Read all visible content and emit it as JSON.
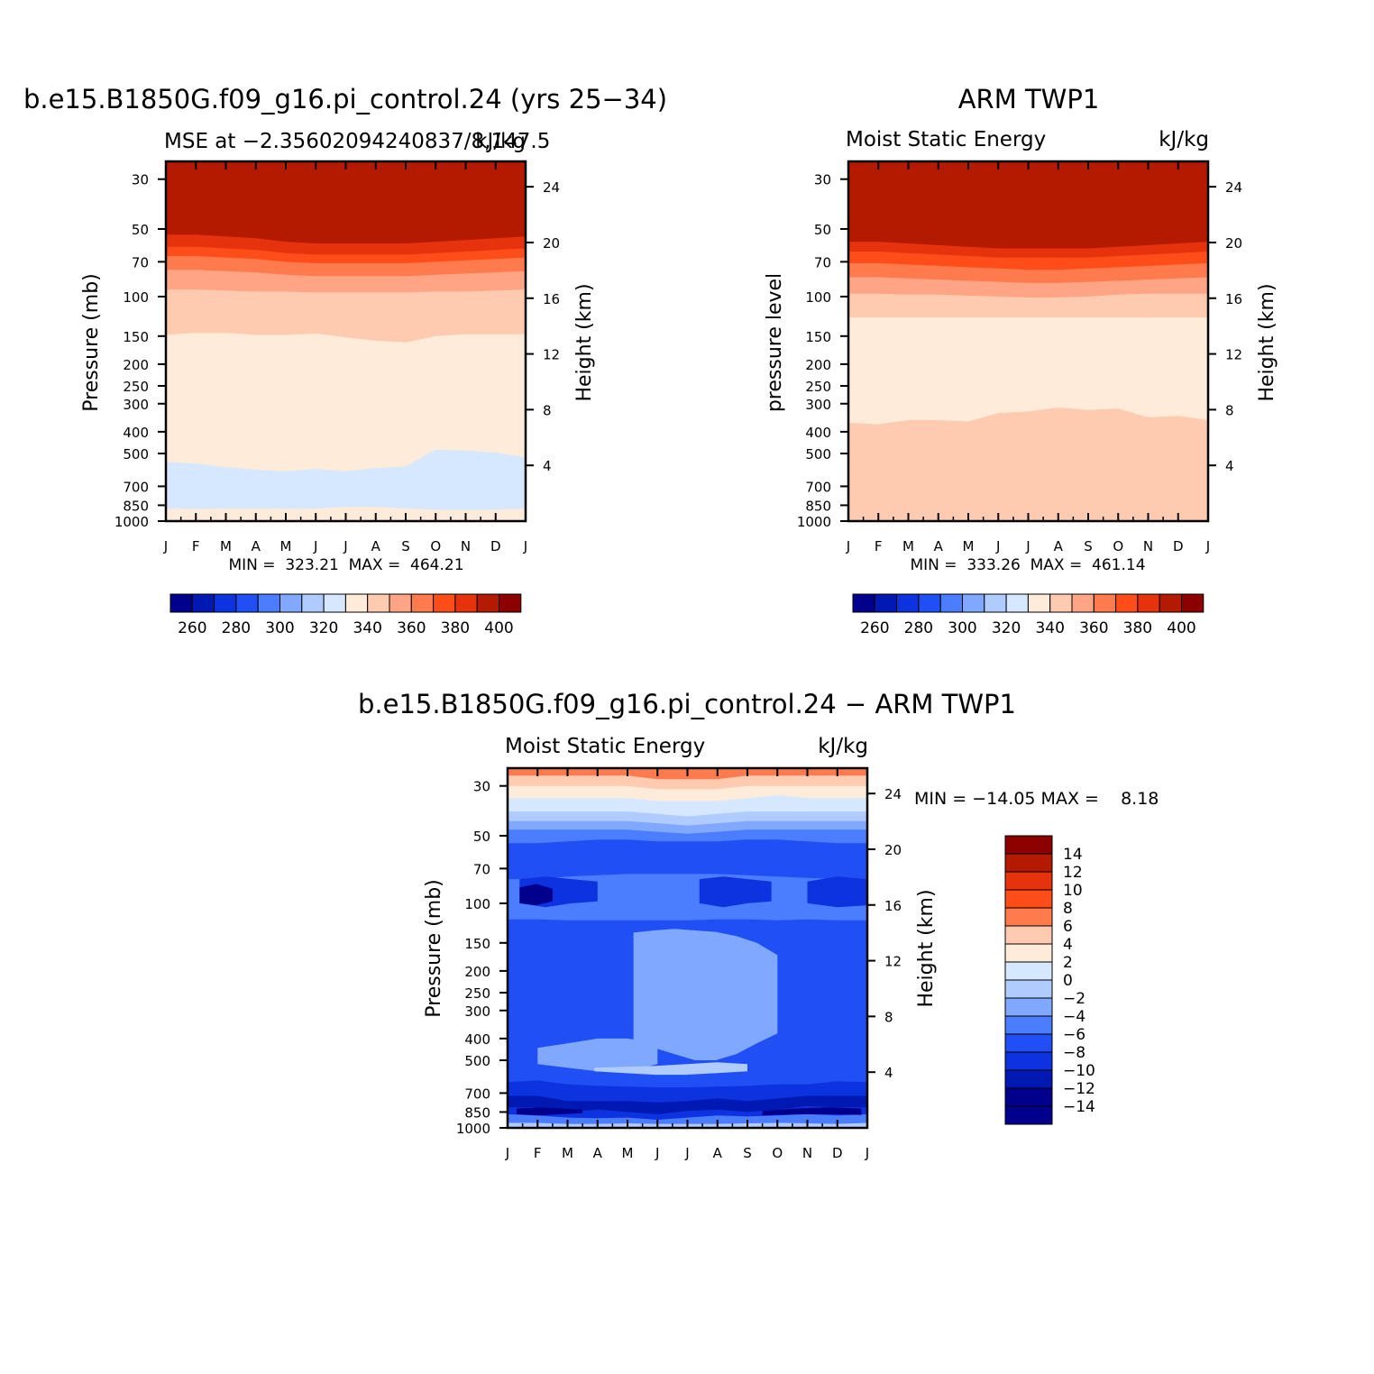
{
  "colors": {
    "abs_levels": [
      "#00008c",
      "#0019b3",
      "#0d33e0",
      "#1f4ff5",
      "#4a7dff",
      "#80a8ff",
      "#b0ccff",
      "#d6e8ff",
      "#ffebd9",
      "#ffcbb0",
      "#ffa585",
      "#ff7a4d",
      "#ff4d1a",
      "#e6330d",
      "#b31a00",
      "#8c0000"
    ],
    "diff_levels": [
      "#00008c",
      "#0019b3",
      "#0d33e0",
      "#1f4ff5",
      "#4a7dff",
      "#80a8ff",
      "#b0ccff",
      "#d6e8ff",
      "#ffebd9",
      "#ffcbb0",
      "#ff7a4d",
      "#ff4d1a",
      "#e6330d",
      "#b31a00",
      "#8c0000"
    ]
  },
  "chart_data": [
    {
      "type": "heatmap",
      "title": "b.e15.B1850G.f09_g16.pi_control.24 (yrs 25−34)",
      "subtitle_left": "MSE at −2.35602094240837/8,147.5",
      "subtitle_right": "kJ/kg",
      "ylabel": "Pressure (mb)",
      "ylabel_right": "Height (km)",
      "x_ticks": [
        "J",
        "F",
        "M",
        "A",
        "M",
        "J",
        "J",
        "A",
        "S",
        "O",
        "N",
        "D",
        "J"
      ],
      "y_ticks": [
        30,
        50,
        70,
        100,
        150,
        200,
        250,
        300,
        400,
        500,
        700,
        850,
        1000
      ],
      "y_ticks_right": [
        24,
        20,
        16,
        12,
        8,
        4
      ],
      "y_scale": "log",
      "ylim": [
        1000,
        25
      ],
      "stats_text": "MIN =  323.21  MAX =  464.21",
      "colorbar_labels": [
        "260",
        "280",
        "300",
        "320",
        "340",
        "360",
        "380",
        "400"
      ],
      "months": [
        0,
        1,
        2,
        3,
        4,
        5,
        6,
        7,
        8,
        9,
        10,
        11,
        12
      ],
      "bands": [
        {
          "level": 8,
          "upper_p": [
            940,
            940,
            940,
            940,
            940,
            940,
            930,
            930,
            940,
            950,
            950,
            950,
            950
          ]
        },
        {
          "level": 7,
          "upper_p": [
            880,
            885,
            880,
            880,
            880,
            880,
            865,
            865,
            880,
            890,
            890,
            890,
            880
          ]
        },
        {
          "level": 8,
          "upper_p": [
            545,
            555,
            575,
            590,
            600,
            585,
            600,
            580,
            570,
            480,
            485,
            495,
            520
          ]
        },
        {
          "level": 9,
          "upper_p": [
            148,
            145,
            145,
            148,
            148,
            146,
            152,
            157,
            160,
            150,
            147,
            147,
            147
          ]
        },
        {
          "level": 10,
          "upper_p": [
            93,
            93,
            94,
            95,
            95,
            96,
            96,
            96,
            96,
            95,
            95,
            94,
            93
          ]
        },
        {
          "level": 11,
          "upper_p": [
            76,
            76,
            77,
            78,
            80,
            81,
            81,
            81,
            81,
            80,
            79,
            78,
            77
          ]
        },
        {
          "level": 12,
          "upper_p": [
            66,
            66,
            67,
            68,
            70,
            71,
            71,
            71,
            71,
            70,
            69,
            68,
            67
          ]
        },
        {
          "level": 13,
          "upper_p": [
            60,
            60,
            61,
            62,
            64,
            65,
            65,
            65,
            65,
            64,
            63,
            62,
            61
          ]
        },
        {
          "level": 14,
          "upper_p": [
            53,
            53,
            54,
            55,
            57,
            58,
            58,
            58,
            58,
            57,
            56,
            55,
            54
          ]
        },
        {
          "level": 15,
          "upper_p": [
            25,
            25,
            25,
            25,
            25,
            25,
            25,
            25,
            25,
            25,
            25,
            25,
            25
          ]
        }
      ]
    },
    {
      "type": "heatmap",
      "title": "ARM TWP1",
      "subtitle_left": "Moist Static Energy",
      "subtitle_right": "kJ/kg",
      "ylabel": "pressure level",
      "ylabel_right": "Height (km)",
      "x_ticks": [
        "J",
        "F",
        "M",
        "A",
        "M",
        "J",
        "J",
        "A",
        "S",
        "O",
        "N",
        "D",
        "J"
      ],
      "y_ticks": [
        30,
        50,
        70,
        100,
        150,
        200,
        250,
        300,
        400,
        500,
        700,
        850,
        1000
      ],
      "y_ticks_right": [
        24,
        20,
        16,
        12,
        8,
        4
      ],
      "y_scale": "log",
      "ylim": [
        1000,
        25
      ],
      "stats_text": "MIN =  333.26  MAX =  461.14",
      "colorbar_labels": [
        "260",
        "280",
        "300",
        "320",
        "340",
        "360",
        "380",
        "400"
      ],
      "months": [
        0,
        1,
        2,
        3,
        4,
        5,
        6,
        7,
        8,
        9,
        10,
        11,
        12
      ],
      "bands": [
        {
          "level": 9,
          "upper_p": [
            870,
            880,
            880,
            855,
            870,
            890,
            890,
            890,
            880,
            880,
            860,
            860,
            860
          ]
        },
        {
          "level": 8,
          "upper_p": [
            365,
            370,
            355,
            355,
            360,
            330,
            325,
            312,
            320,
            315,
            345,
            340,
            355
          ]
        },
        {
          "level": 9,
          "upper_p": [
            124,
            124,
            124,
            124,
            124,
            124,
            124,
            124,
            124,
            124,
            124,
            124,
            124
          ]
        },
        {
          "level": 10,
          "upper_p": [
            97,
            97,
            98,
            98,
            99,
            100,
            101,
            101,
            100,
            98,
            97,
            97,
            97
          ]
        },
        {
          "level": 11,
          "upper_p": [
            82,
            82,
            83,
            84,
            85,
            86,
            87,
            87,
            86,
            85,
            84,
            83,
            82
          ]
        },
        {
          "level": 12,
          "upper_p": [
            71,
            71,
            72,
            73,
            74,
            75,
            76,
            76,
            75,
            74,
            73,
            72,
            71
          ]
        },
        {
          "level": 13,
          "upper_p": [
            63,
            63,
            64,
            65,
            66,
            67,
            67,
            67,
            67,
            66,
            65,
            64,
            63
          ]
        },
        {
          "level": 14,
          "upper_p": [
            57,
            57,
            58,
            59,
            60,
            61,
            61,
            61,
            61,
            60,
            59,
            58,
            57
          ]
        },
        {
          "level": 15,
          "upper_p": [
            25,
            25,
            25,
            25,
            25,
            25,
            25,
            25,
            25,
            25,
            25,
            25,
            25
          ]
        }
      ]
    },
    {
      "type": "heatmap",
      "title": "b.e15.B1850G.f09_g16.pi_control.24 − ARM TWP1",
      "subtitle_left": "Moist Static Energy",
      "subtitle_right": "kJ/kg",
      "ylabel": "Pressure (mb)",
      "ylabel_right": "Height (km)",
      "x_ticks": [
        "J",
        "F",
        "M",
        "A",
        "M",
        "J",
        "J",
        "A",
        "S",
        "O",
        "N",
        "D",
        "J"
      ],
      "y_ticks": [
        30,
        50,
        70,
        100,
        150,
        200,
        250,
        300,
        400,
        500,
        700,
        850,
        1000
      ],
      "y_ticks_right": [
        24,
        20,
        16,
        12,
        8,
        4
      ],
      "y_scale": "log",
      "ylim": [
        1000,
        25
      ],
      "stats_text": "MIN = −14.05 MAX =    8.18",
      "colorbar_labels": [
        "14",
        "12",
        "10",
        "8",
        "6",
        "4",
        "2",
        "0",
        "−2",
        "−4",
        "−6",
        "−8",
        "−10",
        "−12",
        "−14"
      ],
      "months": [
        0,
        1,
        2,
        3,
        4,
        5,
        6,
        7,
        8,
        9,
        10,
        11,
        12
      ],
      "bands": [
        {
          "level": 6,
          "upper_p": [
            990,
            990,
            990,
            990,
            970,
            965,
            975,
            985,
            980,
            990,
            990,
            990,
            990
          ]
        },
        {
          "level": 4,
          "upper_p": [
            950,
            950,
            960,
            960,
            955,
            960,
            960,
            960,
            955,
            950,
            955,
            960,
            950
          ]
        },
        {
          "level": 2,
          "upper_p": [
            870,
            880,
            900,
            905,
            900,
            920,
            900,
            880,
            890,
            880,
            870,
            880,
            870
          ]
        },
        {
          "level": 1,
          "upper_p": [
            810,
            810,
            850,
            830,
            850,
            870,
            840,
            830,
            850,
            830,
            800,
            810,
            810
          ]
        },
        {
          "level": 2,
          "upper_p": [
            720,
            720,
            760,
            760,
            760,
            770,
            760,
            740,
            760,
            740,
            720,
            720,
            720
          ]
        },
        {
          "level": 3,
          "upper_p": [
            625,
            615,
            640,
            650,
            655,
            660,
            660,
            655,
            650,
            640,
            640,
            620,
            625
          ]
        },
        {
          "level": 4,
          "upper_p": [
            118,
            118,
            119,
            119,
            119,
            119,
            119,
            118,
            118,
            119,
            118,
            119,
            119
          ]
        },
        {
          "level": 3,
          "upper_p": [
            78,
            78,
            76,
            75,
            74,
            74,
            74,
            74,
            75,
            76,
            77,
            78,
            79
          ]
        },
        {
          "level": 4,
          "upper_p": [
            54,
            54,
            53,
            52,
            52,
            53,
            53,
            53,
            52,
            52,
            53,
            54,
            54
          ]
        },
        {
          "level": 5,
          "upper_p": [
            47,
            47,
            47,
            47,
            47,
            48,
            49,
            48,
            47,
            47,
            47,
            47,
            47
          ]
        },
        {
          "level": 6,
          "upper_p": [
            43,
            43,
            43,
            43,
            43,
            44,
            45,
            44,
            43,
            43,
            43,
            43,
            43
          ]
        },
        {
          "level": 7,
          "upper_p": [
            39,
            39,
            39,
            39,
            39,
            40,
            41,
            40,
            39,
            39,
            39,
            39,
            39
          ]
        },
        {
          "level": 8,
          "upper_p": [
            34,
            34,
            34,
            34,
            34,
            35,
            35,
            35,
            34,
            33,
            34,
            34,
            34
          ]
        },
        {
          "level": 9,
          "upper_p": [
            30,
            30,
            30,
            30,
            30,
            31,
            31,
            31,
            30,
            30,
            30,
            30,
            30
          ]
        },
        {
          "level": 10,
          "upper_p": [
            27,
            27,
            27,
            27,
            27,
            28,
            28,
            28,
            27,
            27,
            27,
            27,
            27
          ]
        }
      ],
      "regions": [
        {
          "level": 5,
          "month_range": [
            4.2,
            9.0
          ],
          "upper_p": [
            135,
            132,
            130,
            132,
            134,
            140,
            150,
            170
          ],
          "lower_p": [
            420,
            440,
            470,
            500,
            500,
            470,
            420,
            380
          ]
        },
        {
          "level": 5,
          "month_range": [
            1.0,
            5.0
          ],
          "upper_p": [
            440,
            420,
            400,
            400,
            420
          ],
          "lower_p": [
            520,
            540,
            560,
            560,
            520
          ]
        },
        {
          "level": 6,
          "month_range": [
            2.9,
            8.0
          ],
          "upper_p": [
            540,
            535,
            530,
            520,
            510,
            520
          ],
          "lower_p": [
            560,
            570,
            580,
            580,
            570,
            560
          ]
        },
        {
          "level": 2,
          "month_range": [
            0.4,
            3.0
          ],
          "upper_p": [
            78,
            76,
            78,
            80
          ],
          "lower_p": [
            100,
            104,
            100,
            98
          ]
        },
        {
          "level": 2,
          "month_range": [
            6.4,
            8.8
          ],
          "upper_p": [
            78,
            76,
            78,
            80
          ],
          "lower_p": [
            100,
            104,
            100,
            98
          ]
        },
        {
          "level": 2,
          "month_range": [
            10.0,
            12.0
          ],
          "upper_p": [
            80,
            76,
            78
          ],
          "lower_p": [
            100,
            104,
            102
          ]
        },
        {
          "level": 0,
          "month_range": [
            0.4,
            1.5
          ],
          "upper_p": [
            85,
            82,
            86
          ],
          "lower_p": [
            100,
            102,
            98
          ]
        },
        {
          "level": 0,
          "month_range": [
            0.3,
            2.5
          ],
          "upper_p": [
            820,
            810,
            820,
            830
          ],
          "lower_p": [
            870,
            880,
            870,
            860
          ]
        },
        {
          "level": 0,
          "month_range": [
            8.5,
            11.8
          ],
          "upper_p": [
            840,
            820,
            810,
            820
          ],
          "lower_p": [
            880,
            870,
            870,
            875
          ]
        }
      ]
    }
  ]
}
